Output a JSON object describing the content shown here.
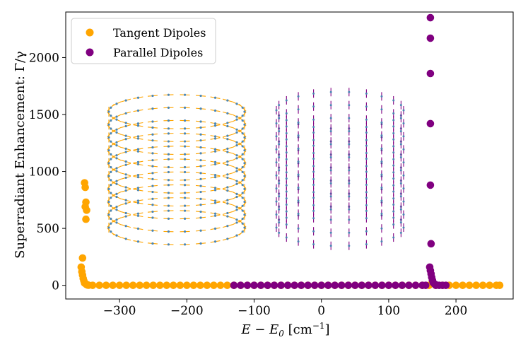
{
  "chart_data": {
    "type": "scatter",
    "xlabel_main": "E − E",
    "xlabel_sub": "0",
    "xlabel_unit": "[cm",
    "xlabel_exp": "−1",
    "xlabel_close": "]",
    "ylabel": "Superradiant Enhancement: Γ/γ",
    "xlim": [
      -380,
      285
    ],
    "ylim": [
      -120,
      2400
    ],
    "xticks": [
      -300,
      -200,
      -100,
      0,
      100,
      200
    ],
    "yticks": [
      0,
      500,
      1000,
      1500,
      2000
    ],
    "legend_position": "top-left",
    "series": [
      {
        "name": "Tangent Dipoles",
        "color": "#FFA500",
        "points": [
          [
            -352,
            900
          ],
          [
            -351,
            860
          ],
          [
            -350,
            730
          ],
          [
            -351,
            690
          ],
          [
            -349,
            660
          ],
          [
            -350,
            580
          ],
          [
            -355,
            240
          ],
          [
            -357,
            160
          ],
          [
            -356,
            120
          ],
          [
            -355,
            90
          ],
          [
            -354,
            60
          ],
          [
            -353,
            40
          ],
          [
            -352,
            20
          ],
          [
            -350,
            12
          ],
          [
            -349,
            6
          ],
          [
            -348,
            4
          ],
          [
            -347,
            2
          ],
          [
            -346,
            1
          ],
          [
            -340,
            0
          ],
          [
            -330,
            0
          ],
          [
            -320,
            0
          ],
          [
            -310,
            0
          ],
          [
            -300,
            0
          ],
          [
            -290,
            0
          ],
          [
            -280,
            0
          ],
          [
            -270,
            0
          ],
          [
            -260,
            0
          ],
          [
            -250,
            0
          ],
          [
            -240,
            0
          ],
          [
            -230,
            0
          ],
          [
            -220,
            0
          ],
          [
            -210,
            0
          ],
          [
            -200,
            0
          ],
          [
            -190,
            0
          ],
          [
            -180,
            0
          ],
          [
            -170,
            0
          ],
          [
            -160,
            0
          ],
          [
            -150,
            0
          ],
          [
            -140,
            0
          ],
          [
            -130,
            0
          ],
          [
            -120,
            0
          ],
          [
            -110,
            0
          ],
          [
            -100,
            0
          ],
          [
            -90,
            0
          ],
          [
            -80,
            0
          ],
          [
            -70,
            0
          ],
          [
            -60,
            0
          ],
          [
            -50,
            0
          ],
          [
            -40,
            0
          ],
          [
            -30,
            0
          ],
          [
            -20,
            0
          ],
          [
            -10,
            0
          ],
          [
            0,
            0
          ],
          [
            10,
            0
          ],
          [
            20,
            0
          ],
          [
            30,
            0
          ],
          [
            40,
            0
          ],
          [
            50,
            0
          ],
          [
            60,
            0
          ],
          [
            70,
            0
          ],
          [
            80,
            0
          ],
          [
            90,
            0
          ],
          [
            100,
            0
          ],
          [
            110,
            0
          ],
          [
            120,
            0
          ],
          [
            130,
            0
          ],
          [
            140,
            0
          ],
          [
            150,
            0
          ],
          [
            160,
            0
          ],
          [
            170,
            0
          ],
          [
            180,
            0
          ],
          [
            190,
            0
          ],
          [
            200,
            0
          ],
          [
            210,
            0
          ],
          [
            220,
            0
          ],
          [
            230,
            0
          ],
          [
            240,
            0
          ],
          [
            250,
            0
          ],
          [
            260,
            0
          ],
          [
            265,
            0
          ]
        ]
      },
      {
        "name": "Parallel Dipoles",
        "color": "#800080",
        "points": [
          [
            162,
            2350
          ],
          [
            162,
            2170
          ],
          [
            162,
            1860
          ],
          [
            162,
            1420
          ],
          [
            162,
            880
          ],
          [
            163,
            365
          ],
          [
            161,
            160
          ],
          [
            162,
            130
          ],
          [
            163,
            100
          ],
          [
            164,
            70
          ],
          [
            165,
            45
          ],
          [
            166,
            25
          ],
          [
            168,
            12
          ],
          [
            170,
            5
          ],
          [
            -130,
            0
          ],
          [
            -120,
            0
          ],
          [
            -110,
            0
          ],
          [
            -100,
            0
          ],
          [
            -90,
            0
          ],
          [
            -80,
            0
          ],
          [
            -70,
            0
          ],
          [
            -60,
            0
          ],
          [
            -50,
            0
          ],
          [
            -40,
            0
          ],
          [
            -30,
            0
          ],
          [
            -20,
            0
          ],
          [
            -10,
            0
          ],
          [
            0,
            0
          ],
          [
            10,
            0
          ],
          [
            20,
            0
          ],
          [
            30,
            0
          ],
          [
            40,
            0
          ],
          [
            50,
            0
          ],
          [
            60,
            0
          ],
          [
            70,
            0
          ],
          [
            80,
            0
          ],
          [
            90,
            0
          ],
          [
            100,
            0
          ],
          [
            110,
            0
          ],
          [
            120,
            0
          ],
          [
            130,
            0
          ],
          [
            140,
            0
          ],
          [
            150,
            0
          ],
          [
            155,
            0
          ],
          [
            170,
            0
          ],
          [
            175,
            0
          ],
          [
            180,
            0
          ],
          [
            185,
            0
          ]
        ]
      }
    ],
    "insets": [
      {
        "name": "tangent-cylinder-inset",
        "style": "tangent",
        "color": "#FFA500",
        "dot_color": "#4A86B5"
      },
      {
        "name": "parallel-cylinder-inset",
        "style": "parallel",
        "color": "#800080",
        "dot_color": "#4A86B5"
      }
    ]
  }
}
